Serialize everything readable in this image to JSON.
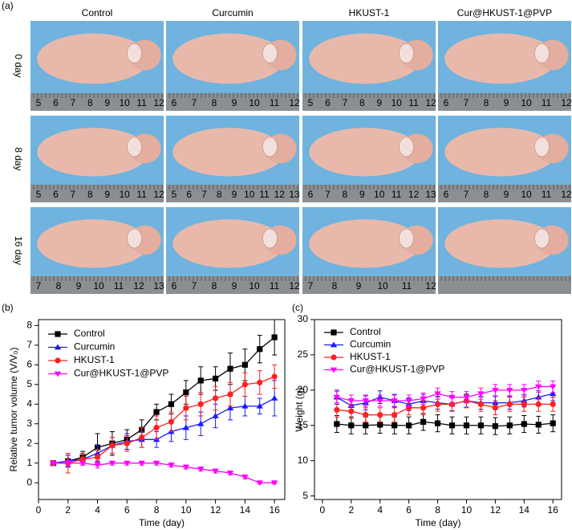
{
  "figure": {
    "panel_label": "(a)",
    "columns": [
      "Control",
      "Curcumin",
      "HKUST-1",
      "Cur@HKUST-1@PVP"
    ],
    "rows": [
      "0 day",
      "8 day",
      "16 day"
    ],
    "rulers": [
      [
        [
          5,
          6,
          7,
          8,
          9,
          10,
          11,
          12
        ],
        [
          6,
          7,
          8,
          9,
          10,
          11,
          12
        ],
        [
          5,
          6,
          7,
          8,
          9,
          10,
          11,
          12
        ],
        [
          6,
          7,
          8,
          9,
          10,
          11,
          12
        ]
      ],
      [
        [
          5,
          6,
          7,
          8,
          9,
          10,
          11,
          12
        ],
        [
          5,
          6,
          7,
          8,
          9,
          10,
          11,
          12,
          13
        ],
        [
          6,
          7,
          8,
          9,
          10,
          11,
          12,
          13
        ],
        [
          6,
          7,
          8,
          9,
          10,
          11,
          12
        ]
      ],
      [
        [
          7,
          8,
          9,
          10,
          11,
          12,
          13
        ],
        [
          6,
          7,
          8,
          9,
          10,
          11,
          12
        ],
        [
          7,
          8,
          9,
          10,
          11,
          12
        ],
        []
      ]
    ]
  },
  "chart_data": [
    {
      "type": "line",
      "panel_label": "(b)",
      "xlabel": "Time (day)",
      "ylabel": "Relative tumor volume (V/V₀)",
      "x": [
        1,
        2,
        3,
        4,
        5,
        6,
        7,
        8,
        9,
        10,
        11,
        12,
        13,
        14,
        15,
        16
      ],
      "xlim": [
        0,
        16.7
      ],
      "xticks": [
        0,
        2,
        4,
        6,
        8,
        10,
        12,
        14,
        16
      ],
      "ylim": [
        -0.85,
        8.3
      ],
      "yticks": [
        0,
        1,
        2,
        3,
        4,
        5,
        6,
        7,
        8
      ],
      "legend": "upper left",
      "series": [
        {
          "name": "Control",
          "color": "#000000",
          "marker": "square",
          "values": [
            1,
            1.1,
            1.3,
            1.8,
            2.0,
            2.2,
            2.7,
            3.6,
            4.0,
            4.6,
            5.2,
            5.3,
            5.8,
            6.0,
            6.8,
            7.4
          ],
          "errors": [
            0.1,
            0.3,
            0.3,
            0.7,
            0.6,
            0.5,
            0.5,
            0.4,
            0.5,
            0.6,
            0.7,
            0.6,
            0.8,
            0.8,
            0.7,
            0.9
          ]
        },
        {
          "name": "Curcumin",
          "color": "#1a1aff",
          "marker": "triangle",
          "values": [
            1,
            1.1,
            1.2,
            1.5,
            1.9,
            2.1,
            2.2,
            2.2,
            2.6,
            2.8,
            3.0,
            3.4,
            3.8,
            3.9,
            3.9,
            4.3
          ],
          "errors": [
            0.1,
            0.3,
            0.3,
            0.4,
            0.4,
            0.4,
            0.4,
            0.4,
            0.5,
            0.6,
            0.6,
            0.6,
            0.6,
            0.5,
            0.4,
            0.9
          ]
        },
        {
          "name": "HKUST-1",
          "color": "#ff2020",
          "marker": "circle",
          "values": [
            1,
            1.0,
            1.2,
            1.3,
            1.9,
            2.0,
            2.3,
            2.8,
            3.1,
            3.8,
            4.0,
            4.3,
            4.5,
            5.0,
            5.1,
            5.4
          ],
          "errors": [
            0.1,
            0.5,
            0.3,
            0.4,
            0.4,
            0.4,
            0.5,
            0.6,
            0.5,
            0.6,
            0.6,
            0.6,
            0.6,
            0.6,
            0.6,
            0.6
          ]
        },
        {
          "name": "Cur@HKUST-1@PVP",
          "color": "#ff00ff",
          "marker": "down-triangle",
          "values": [
            1,
            1.0,
            1.0,
            0.9,
            1.0,
            1.0,
            1.0,
            1.0,
            0.9,
            0.8,
            0.7,
            0.6,
            0.5,
            0.3,
            0.0,
            0.0
          ],
          "errors": [
            0.05,
            0.15,
            0.1,
            0.15,
            0.1,
            0.1,
            0.1,
            0.1,
            0.1,
            0.1,
            0.1,
            0.1,
            0.1,
            0.1,
            0.05,
            0.05
          ]
        }
      ]
    },
    {
      "type": "line",
      "panel_label": "(c)",
      "xlabel": "Time (day)",
      "ylabel": "Weight (g)",
      "x": [
        1,
        2,
        3,
        4,
        5,
        6,
        7,
        8,
        9,
        10,
        11,
        12,
        13,
        14,
        15,
        16
      ],
      "xlim": [
        -0.55,
        16.6
      ],
      "xticks": [
        0,
        2,
        4,
        6,
        8,
        10,
        12,
        14,
        16
      ],
      "ylim": [
        4.5,
        30
      ],
      "yticks": [
        5,
        10,
        15,
        20,
        25,
        30
      ],
      "legend": "upper left",
      "series": [
        {
          "name": "Control",
          "color": "#000000",
          "marker": "square",
          "values": [
            15.2,
            15.0,
            15.0,
            15.1,
            15.0,
            15.0,
            15.5,
            15.3,
            15.0,
            15.0,
            15.0,
            14.9,
            15.0,
            15.2,
            15.1,
            15.3
          ],
          "errors": [
            1.2,
            1.2,
            1.2,
            1.2,
            1.2,
            1.2,
            1.2,
            1.2,
            1.2,
            1.2,
            1.2,
            1.2,
            1.2,
            1.2,
            1.2,
            1.2
          ]
        },
        {
          "name": "Curcumin",
          "color": "#1a1aff",
          "marker": "triangle",
          "values": [
            19.0,
            17.8,
            18.2,
            19.0,
            18.5,
            18.0,
            18.5,
            18.2,
            18.0,
            18.5,
            18.2,
            18.2,
            18.2,
            18.5,
            19.0,
            19.5
          ],
          "errors": [
            1.0,
            1.0,
            1.0,
            0.9,
            0.9,
            0.9,
            0.9,
            0.9,
            0.9,
            0.9,
            0.9,
            0.9,
            0.9,
            0.9,
            0.9,
            1.0
          ]
        },
        {
          "name": "HKUST-1",
          "color": "#ff2020",
          "marker": "circle",
          "values": [
            17.2,
            17.0,
            16.5,
            16.5,
            16.5,
            17.5,
            17.5,
            18.0,
            18.0,
            18.5,
            18.0,
            17.5,
            18.0,
            18.0,
            18.0,
            18.0
          ],
          "errors": [
            1.0,
            1.0,
            1.0,
            1.0,
            1.0,
            1.0,
            1.0,
            1.0,
            1.0,
            1.0,
            1.0,
            1.0,
            1.0,
            1.0,
            1.0,
            1.0
          ]
        },
        {
          "name": "Cur@HKUST-1@PVP",
          "color": "#ff00ff",
          "marker": "down-triangle",
          "values": [
            19.0,
            18.5,
            18.5,
            18.5,
            18.5,
            18.5,
            18.8,
            19.5,
            19.0,
            19.0,
            19.5,
            20.0,
            20.0,
            20.0,
            20.5,
            20.5
          ],
          "errors": [
            0.8,
            0.8,
            0.8,
            0.8,
            0.8,
            0.8,
            0.8,
            0.8,
            0.8,
            0.8,
            0.8,
            0.8,
            0.8,
            0.8,
            0.8,
            0.8
          ]
        }
      ]
    }
  ]
}
